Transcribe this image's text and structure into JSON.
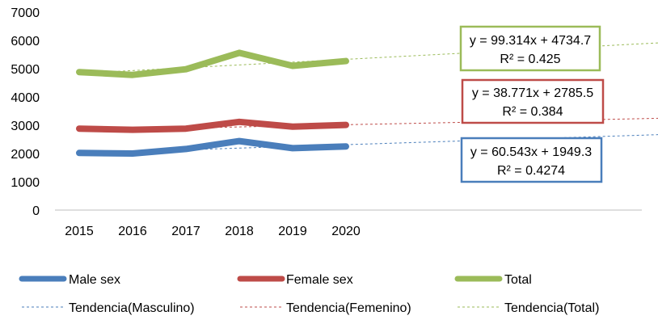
{
  "chart_data": {
    "type": "line",
    "x": [
      "2015",
      "2016",
      "2017",
      "2018",
      "2019",
      "2020"
    ],
    "ylim": [
      0,
      7000
    ],
    "y_ticks": [
      0,
      1000,
      2000,
      3000,
      4000,
      5000,
      6000,
      7000
    ],
    "x_extent": 12,
    "grid": false,
    "legend_position": "bottom",
    "series": [
      {
        "name": "Male sex",
        "color": "#4a7ebb",
        "values": [
          2020,
          2000,
          2160,
          2440,
          2190,
          2250
        ]
      },
      {
        "name": "Female sex",
        "color": "#be4b48",
        "values": [
          2880,
          2840,
          2880,
          3120,
          2950,
          3010
        ]
      },
      {
        "name": "Total",
        "color": "#9bbb59",
        "values": [
          4880,
          4780,
          4980,
          5560,
          5100,
          5270
        ]
      }
    ],
    "trendlines": [
      {
        "name": "Tendencia(Masculino)",
        "color": "#4a7ebb",
        "slope": 60.543,
        "intercept": 1949.3,
        "equation": "y = 60.543x + 1949.3",
        "r2": "R² = 0.4274"
      },
      {
        "name": "Tendencia(Femenino)",
        "color": "#be4b48",
        "slope": 38.771,
        "intercept": 2785.5,
        "equation": "y = 38.771x + 2785.5",
        "r2": "R² = 0.384"
      },
      {
        "name": "Tendencia(Total)",
        "color": "#9bbb59",
        "slope": 99.314,
        "intercept": 4734.7,
        "equation": "y = 99.314x + 4734.7",
        "r2": "R² = 0.425"
      }
    ]
  }
}
